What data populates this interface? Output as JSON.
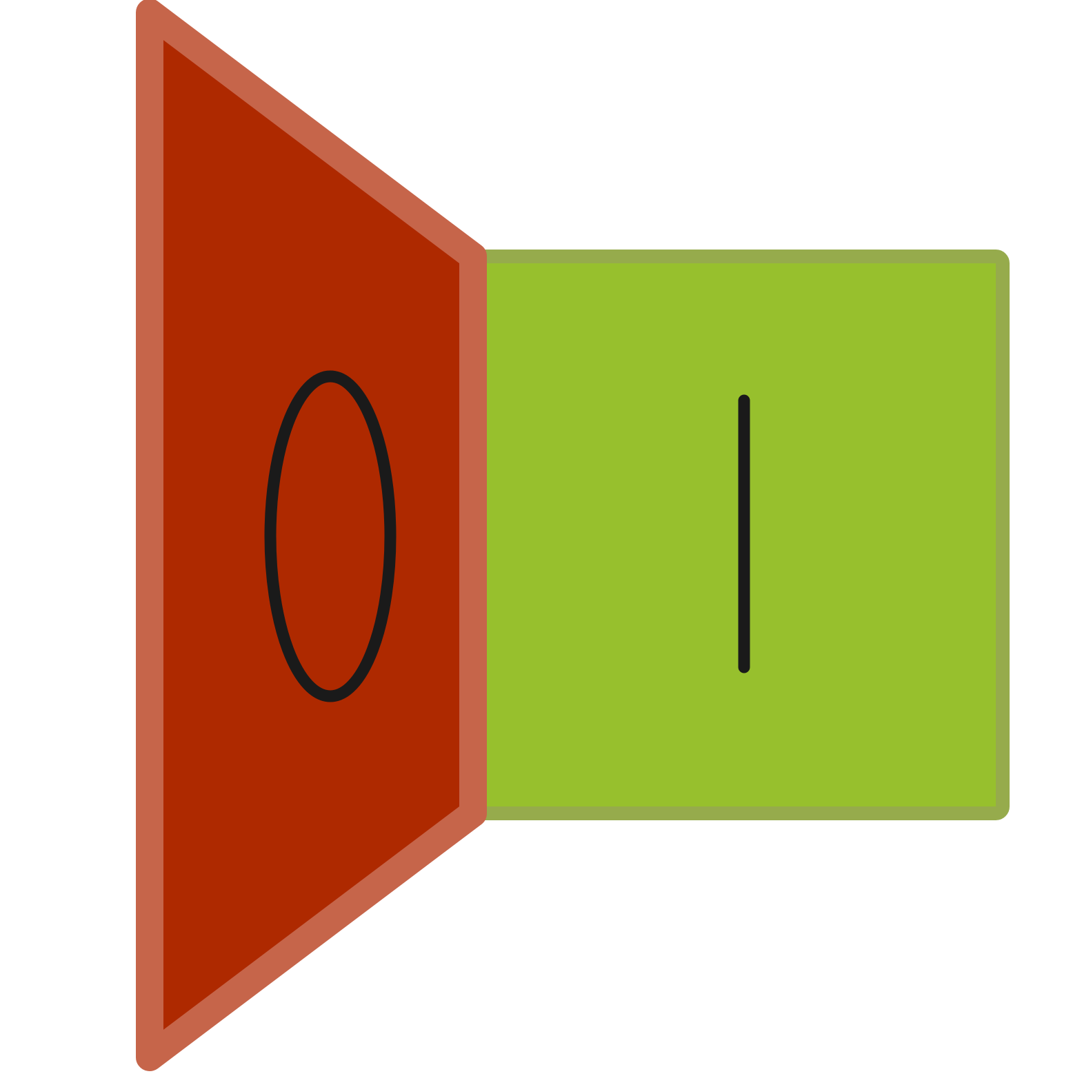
{
  "icon": {
    "name": "on-off-toggle-icon",
    "left_panel": {
      "symbol": "O",
      "fill_color": "#AE2900",
      "border_color": "#C6654A"
    },
    "right_panel": {
      "symbol": "I",
      "fill_color": "#97C02D",
      "border_color": "#96AB4C"
    },
    "symbol_color": "#1A1A1A",
    "background_color": "#FFFFFF"
  }
}
